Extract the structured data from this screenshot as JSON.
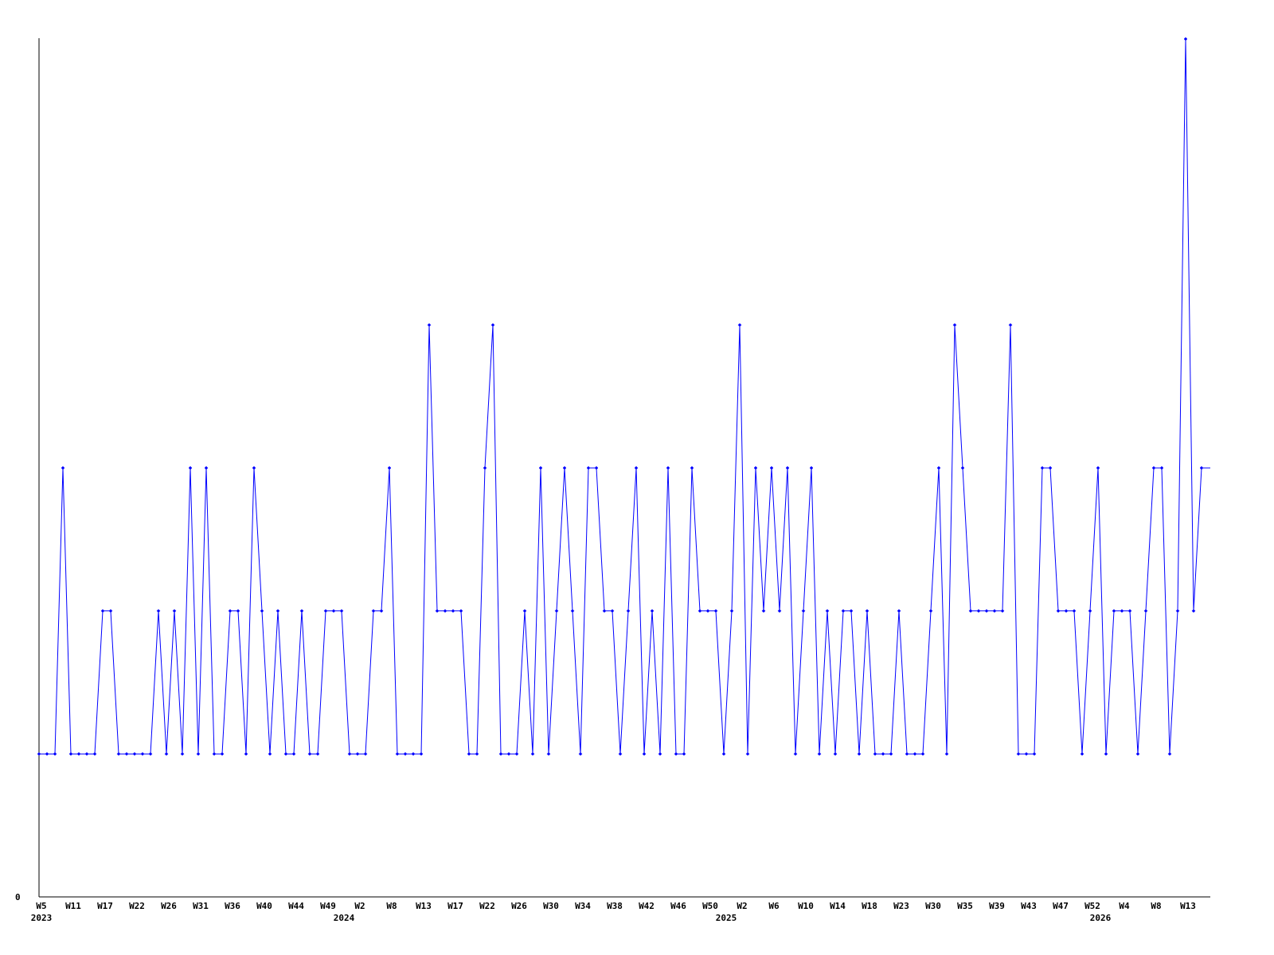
{
  "chart_data": {
    "type": "line",
    "title": "",
    "xlabel": "",
    "ylabel": "",
    "ylim": [
      0,
      6
    ],
    "yticks": [
      {
        "value": 0,
        "label": "0"
      }
    ],
    "grid": false,
    "legend": "none",
    "colors": {
      "series": "#0000ff",
      "axis": "#000000"
    },
    "x_tick_labels": [
      {
        "index": 0,
        "label": "W5"
      },
      {
        "index": 4,
        "label": "W11"
      },
      {
        "index": 8,
        "label": "W17"
      },
      {
        "index": 12,
        "label": "W22"
      },
      {
        "index": 16,
        "label": "W26"
      },
      {
        "index": 20,
        "label": "W31"
      },
      {
        "index": 24,
        "label": "W36"
      },
      {
        "index": 28,
        "label": "W40"
      },
      {
        "index": 32,
        "label": "W44"
      },
      {
        "index": 36,
        "label": "W49"
      },
      {
        "index": 40,
        "label": "W2"
      },
      {
        "index": 44,
        "label": "W8"
      },
      {
        "index": 48,
        "label": "W13"
      },
      {
        "index": 52,
        "label": "W17"
      },
      {
        "index": 56,
        "label": "W22"
      },
      {
        "index": 60,
        "label": "W26"
      },
      {
        "index": 64,
        "label": "W30"
      },
      {
        "index": 68,
        "label": "W34"
      },
      {
        "index": 72,
        "label": "W38"
      },
      {
        "index": 76,
        "label": "W42"
      },
      {
        "index": 80,
        "label": "W46"
      },
      {
        "index": 84,
        "label": "W50"
      },
      {
        "index": 88,
        "label": "W2"
      },
      {
        "index": 92,
        "label": "W6"
      },
      {
        "index": 96,
        "label": "W10"
      },
      {
        "index": 100,
        "label": "W14"
      },
      {
        "index": 104,
        "label": "W18"
      },
      {
        "index": 108,
        "label": "W23"
      },
      {
        "index": 112,
        "label": "W30"
      },
      {
        "index": 116,
        "label": "W35"
      },
      {
        "index": 120,
        "label": "W39"
      },
      {
        "index": 124,
        "label": "W43"
      },
      {
        "index": 128,
        "label": "W47"
      },
      {
        "index": 132,
        "label": "W52"
      },
      {
        "index": 136,
        "label": "W4"
      },
      {
        "index": 140,
        "label": "W8"
      },
      {
        "index": 144,
        "label": "W13"
      }
    ],
    "year_labels": [
      {
        "index": 0,
        "label": "2023"
      },
      {
        "index": 38,
        "label": "2024"
      },
      {
        "index": 86,
        "label": "2025"
      },
      {
        "index": 133,
        "label": "2026"
      }
    ],
    "series": [
      {
        "values": [
          1,
          1,
          1,
          3,
          1,
          1,
          1,
          1,
          2,
          2,
          1,
          1,
          1,
          1,
          1,
          2,
          1,
          2,
          1,
          3,
          1,
          3,
          1,
          1,
          2,
          2,
          1,
          3,
          2,
          1,
          2,
          1,
          1,
          2,
          1,
          1,
          2,
          2,
          2,
          1,
          1,
          1,
          2,
          2,
          3,
          1,
          1,
          1,
          1,
          4,
          2,
          2,
          2,
          2,
          1,
          1,
          3,
          4,
          1,
          1,
          1,
          2,
          1,
          3,
          1,
          2,
          3,
          2,
          1,
          3,
          3,
          2,
          2,
          1,
          2,
          3,
          1,
          2,
          1,
          3,
          1,
          1,
          3,
          2,
          2,
          2,
          1,
          2,
          4,
          1,
          3,
          2,
          3,
          2,
          3,
          1,
          2,
          3,
          1,
          2,
          1,
          2,
          2,
          1,
          2,
          1,
          1,
          1,
          2,
          1,
          1,
          1,
          2,
          3,
          1,
          4,
          3,
          2,
          2,
          2,
          2,
          2,
          4,
          1,
          1,
          1,
          3,
          3,
          2,
          2,
          2,
          1,
          2,
          3,
          1,
          2,
          2,
          2,
          1,
          2,
          3,
          3,
          1,
          2,
          6,
          2,
          3
        ]
      }
    ]
  }
}
